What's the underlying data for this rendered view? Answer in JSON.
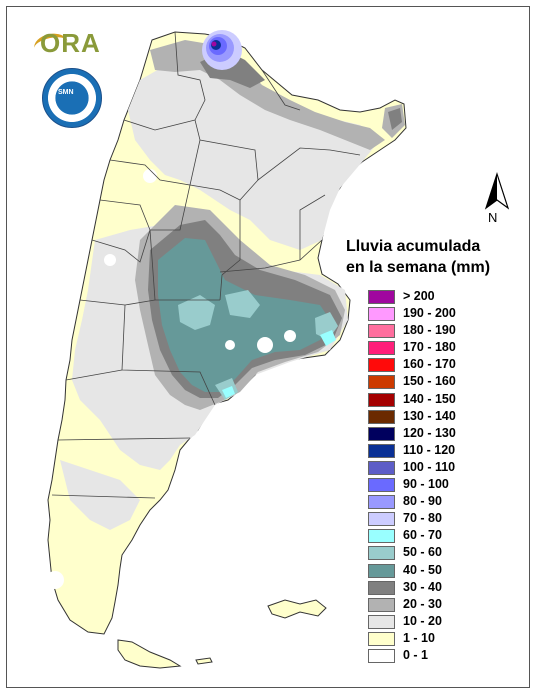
{
  "legend": {
    "title_line1": "Lluvia acumulada",
    "title_line2": "en la semana (mm)",
    "items": [
      {
        "label": "> 200",
        "color": "#a0069f"
      },
      {
        "label": "190 - 200",
        "color": "#ff99ff"
      },
      {
        "label": "180 - 190",
        "color": "#ff6e9e"
      },
      {
        "label": "170 - 180",
        "color": "#ff1f7a"
      },
      {
        "label": "160 - 170",
        "color": "#ff0a0a"
      },
      {
        "label": "150 - 160",
        "color": "#cc3a00"
      },
      {
        "label": "140 - 150",
        "color": "#a50000"
      },
      {
        "label": "130 - 140",
        "color": "#6b2a00"
      },
      {
        "label": "120 - 130",
        "color": "#00005e"
      },
      {
        "label": "110 - 120",
        "color": "#0a3095"
      },
      {
        "label": "100 - 110",
        "color": "#5d5dc7"
      },
      {
        "label": "90 - 100",
        "color": "#6a6aff"
      },
      {
        "label": "80 - 90",
        "color": "#9999ff"
      },
      {
        "label": "70 - 80",
        "color": "#ccccff"
      },
      {
        "label": "60 - 70",
        "color": "#99ffff"
      },
      {
        "label": "50 - 60",
        "color": "#99cccc"
      },
      {
        "label": "40 - 50",
        "color": "#669999"
      },
      {
        "label": "30 - 40",
        "color": "#808080"
      },
      {
        "label": "20 - 30",
        "color": "#b2b2b2"
      },
      {
        "label": "10 - 20",
        "color": "#e6e6e6"
      },
      {
        "label": "1 - 10",
        "color": "#ffffcc"
      },
      {
        "label": "0 - 1",
        "color": "#ffffff"
      }
    ]
  },
  "north_label": "N",
  "logo": {
    "text": "ORA",
    "seal_text": "SMN"
  }
}
